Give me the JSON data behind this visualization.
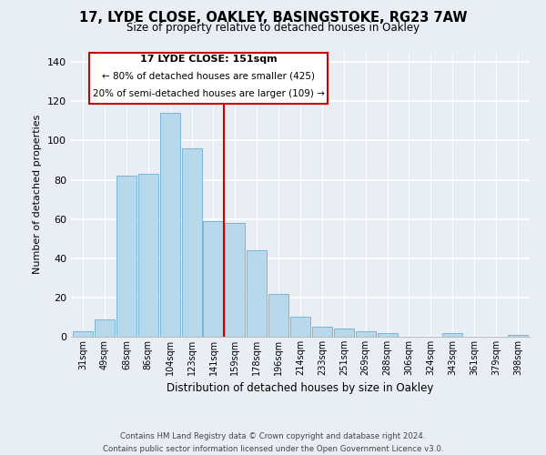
{
  "title": "17, LYDE CLOSE, OAKLEY, BASINGSTOKE, RG23 7AW",
  "subtitle": "Size of property relative to detached houses in Oakley",
  "xlabel": "Distribution of detached houses by size in Oakley",
  "ylabel": "Number of detached properties",
  "bar_labels": [
    "31sqm",
    "49sqm",
    "68sqm",
    "86sqm",
    "104sqm",
    "123sqm",
    "141sqm",
    "159sqm",
    "178sqm",
    "196sqm",
    "214sqm",
    "233sqm",
    "251sqm",
    "269sqm",
    "288sqm",
    "306sqm",
    "324sqm",
    "343sqm",
    "361sqm",
    "379sqm",
    "398sqm"
  ],
  "bar_values": [
    3,
    9,
    82,
    83,
    114,
    96,
    59,
    58,
    44,
    22,
    10,
    5,
    4,
    3,
    2,
    0,
    0,
    2,
    0,
    0,
    1
  ],
  "bar_color": "#b8d9ec",
  "bar_edge_color": "#7ab5d4",
  "vline_color": "#cc0000",
  "ylim": [
    0,
    145
  ],
  "yticks": [
    0,
    20,
    40,
    60,
    80,
    100,
    120,
    140
  ],
  "annotation_title": "17 LYDE CLOSE: 151sqm",
  "annotation_line1": "← 80% of detached houses are smaller (425)",
  "annotation_line2": "20% of semi-detached houses are larger (109) →",
  "annotation_box_color": "#cc0000",
  "footer_line1": "Contains HM Land Registry data © Crown copyright and database right 2024.",
  "footer_line2": "Contains public sector information licensed under the Open Government Licence v3.0.",
  "background_color": "#e8eef4"
}
